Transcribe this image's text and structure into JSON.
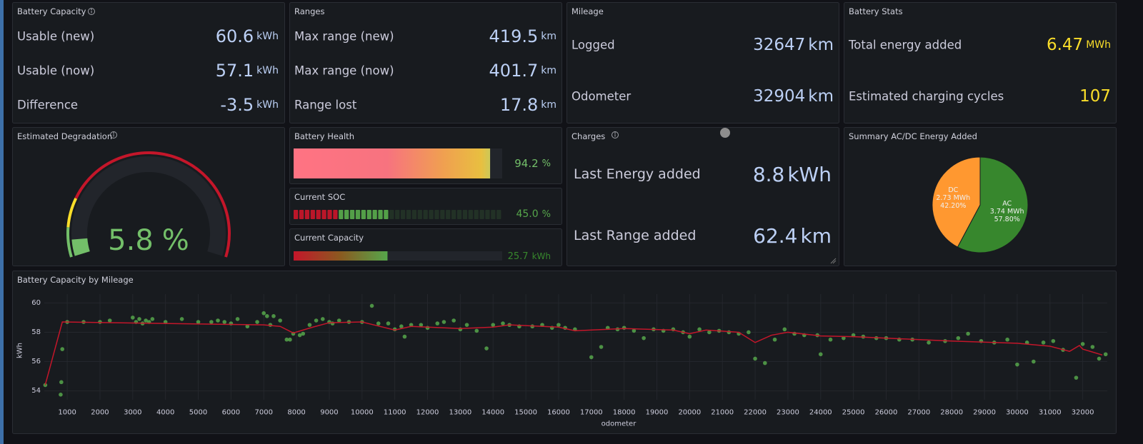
{
  "battery_capacity": {
    "title": "Battery Capacity",
    "rows": [
      {
        "label": "Usable (new)",
        "value": 60.6,
        "unit": "kWh"
      },
      {
        "label": "Usable (now)",
        "value": 57.1,
        "unit": "kWh"
      },
      {
        "label": "Difference",
        "value": -3.5,
        "unit": "kWh"
      }
    ]
  },
  "ranges": {
    "title": "Ranges",
    "rows": [
      {
        "label": "Max range (new)",
        "value": 419.5,
        "unit": "km"
      },
      {
        "label": "Max range (now)",
        "value": 401.7,
        "unit": "km"
      },
      {
        "label": "Range lost",
        "value": 17.8,
        "unit": "km"
      }
    ]
  },
  "mileage": {
    "title": "Mileage",
    "rows": [
      {
        "label": "Logged",
        "value": 32647,
        "unit": "km"
      },
      {
        "label": "Odometer",
        "value": 32904,
        "unit": "km"
      }
    ]
  },
  "battery_stats": {
    "title": "Battery Stats",
    "rows": [
      {
        "label": "Total energy added",
        "value": 6.47,
        "unit": "MWh"
      },
      {
        "label": "Estimated charging cycles",
        "value": 107
      }
    ]
  },
  "estimated_degradation": {
    "title": "Estimated Degradation",
    "value": 5.8,
    "unit": "%",
    "range": [
      0,
      100
    ],
    "color": "#73bf69",
    "thresholds": [
      {
        "value": 0,
        "color": "#73bf69"
      },
      {
        "value": 10,
        "color": "#fade2a"
      },
      {
        "value": 20,
        "color": "#c4162a"
      }
    ]
  },
  "battery_health": {
    "title": "Battery Health",
    "value": 94.2,
    "unit": "%",
    "range": [
      0,
      100
    ],
    "color": "#73bf69"
  },
  "current_soc": {
    "title": "Current SOC",
    "value": 45,
    "value_label": "45.0",
    "unit": "%",
    "range": [
      0,
      100
    ],
    "color": "#56a64b",
    "thresholds": [
      {
        "value": 0,
        "color": "#c4162a"
      },
      {
        "value": 22,
        "color": "#56a64b"
      }
    ]
  },
  "current_capacity": {
    "title": "Current Capacity",
    "value": 25.7,
    "unit": "kWh",
    "range": [
      0,
      57.1
    ],
    "color": "#37872d"
  },
  "charges": {
    "title": "Charges",
    "rows": [
      {
        "label": "Last Energy added",
        "value": 8.8,
        "unit": "kWh"
      },
      {
        "label": "Last Range added",
        "value": 62.4,
        "unit": "km"
      }
    ]
  },
  "summary": {
    "title": "Summary AC/DC Energy Added",
    "type": "pie",
    "slices": [
      {
        "name": "AC",
        "value": 3.74,
        "value_label": "3.74 MWh",
        "percent": 57.8,
        "percent_label": "57.80%",
        "color": "#37872d"
      },
      {
        "name": "DC",
        "value": 2.73,
        "value_label": "2.73 MWh",
        "percent": 42.2,
        "percent_label": "42.20%",
        "color": "#ff9830"
      }
    ]
  },
  "chart_data": {
    "type": "scatter",
    "title": "Battery Capacity by Mileage",
    "x_label": "odometer",
    "y_label": "kWh",
    "xlim": [
      300,
      32750
    ],
    "ylim": [
      53.4,
      60.6
    ],
    "grid": true,
    "xticks": [
      1000,
      2000,
      3000,
      4000,
      5000,
      6000,
      7000,
      8000,
      9000,
      10000,
      11000,
      12000,
      13000,
      14000,
      15000,
      16000,
      17000,
      18000,
      19000,
      20000,
      21000,
      22000,
      23000,
      24000,
      25000,
      26000,
      27000,
      28000,
      29000,
      30000,
      31000,
      32000
    ],
    "yticks": [
      54,
      56,
      58,
      60
    ],
    "series": [
      {
        "mode": "points",
        "color": "#56a64b",
        "x": [
          330,
          800,
          820,
          850,
          1000,
          1500,
          2000,
          2300,
          3000,
          3100,
          3200,
          3300,
          3400,
          3500,
          3600,
          4000,
          4500,
          5000,
          5400,
          5600,
          5800,
          6000,
          6200,
          6500,
          6800,
          7000,
          7100,
          7200,
          7300,
          7500,
          7700,
          7800,
          7900,
          8100,
          8200,
          8400,
          8600,
          8800,
          9000,
          9100,
          9300,
          9600,
          10000,
          10300,
          10500,
          10800,
          11000,
          11200,
          11300,
          11500,
          11800,
          12000,
          12300,
          12500,
          12800,
          13000,
          13200,
          13500,
          13800,
          14000,
          14300,
          14500,
          14800,
          15200,
          15500,
          15800,
          16000,
          16200,
          16500,
          17000,
          17300,
          17500,
          17800,
          18000,
          18300,
          18600,
          18900,
          19200,
          19500,
          19800,
          20000,
          20300,
          20600,
          20900,
          21200,
          21500,
          21800,
          22000,
          22300,
          22600,
          22900,
          23200,
          23500,
          23900,
          24000,
          24300,
          24700,
          25000,
          25300,
          25700,
          26000,
          26400,
          26800,
          27300,
          27800,
          28200,
          28500,
          28900,
          29300,
          29700,
          30000,
          30300,
          30500,
          30800,
          31100,
          31400,
          31800,
          32000,
          32300,
          32500,
          32700
        ],
        "values": [
          54.4,
          53.75,
          54.6,
          56.85,
          58.7,
          58.7,
          58.7,
          58.8,
          59.0,
          58.7,
          58.9,
          58.6,
          58.8,
          58.7,
          58.9,
          58.7,
          58.9,
          58.7,
          58.7,
          58.8,
          58.7,
          58.6,
          58.9,
          58.4,
          58.7,
          59.3,
          59.1,
          58.5,
          59.1,
          58.8,
          57.5,
          57.5,
          57.9,
          57.8,
          57.9,
          58.5,
          58.8,
          58.9,
          58.7,
          58.6,
          58.8,
          58.7,
          58.7,
          59.8,
          58.6,
          58.6,
          58.2,
          58.4,
          57.7,
          58.5,
          58.5,
          58.3,
          58.6,
          58.7,
          58.8,
          58.2,
          58.5,
          58.1,
          56.9,
          58.5,
          58.6,
          58.5,
          58.4,
          58.4,
          58.5,
          58.3,
          58.5,
          58.3,
          58.2,
          56.3,
          57.0,
          58.3,
          58.2,
          58.3,
          58.1,
          57.6,
          58.2,
          58.1,
          58.2,
          58.0,
          57.7,
          58.2,
          58.0,
          58.1,
          58.0,
          57.9,
          58.0,
          56.2,
          55.9,
          57.5,
          58.2,
          57.9,
          57.8,
          57.8,
          56.5,
          57.5,
          57.6,
          57.8,
          57.7,
          57.6,
          57.6,
          57.5,
          57.5,
          57.3,
          57.4,
          57.6,
          57.9,
          57.4,
          57.3,
          57.5,
          55.8,
          57.3,
          56.0,
          57.3,
          57.4,
          56.8,
          54.9,
          57.2,
          57.0,
          56.2,
          56.5
        ]
      },
      {
        "mode": "line",
        "color": "#c4162a",
        "x": [
          327,
          850,
          7000,
          7500,
          7900,
          8500,
          9000,
          10000,
          11000,
          11500,
          13000,
          14000,
          14500,
          16000,
          16500,
          18000,
          19500,
          20000,
          20500,
          21500,
          22000,
          22500,
          23000,
          24000,
          25000,
          26500,
          28000,
          30000,
          31000,
          31600,
          31900,
          32000,
          32600
        ],
        "values": [
          54.4,
          58.7,
          58.5,
          58.4,
          57.95,
          58.35,
          58.65,
          58.7,
          58.15,
          58.4,
          58.25,
          58.35,
          58.5,
          58.35,
          58.1,
          58.25,
          58.15,
          57.9,
          58.15,
          58.0,
          57.3,
          57.8,
          58.0,
          57.75,
          57.7,
          57.55,
          57.4,
          57.25,
          57.05,
          56.7,
          57.1,
          56.85,
          56.45
        ]
      }
    ]
  }
}
